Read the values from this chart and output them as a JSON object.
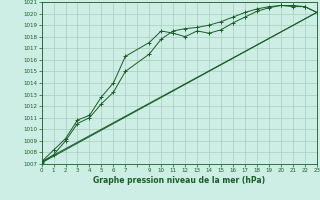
{
  "background_color": "#cdeee4",
  "grid_color": "#a8ccbe",
  "line_color": "#1a5c28",
  "title": "Graphe pression niveau de la mer (hPa)",
  "xlim": [
    0,
    23
  ],
  "ylim": [
    1007,
    1021
  ],
  "xtick_labels": [
    "0",
    "1",
    "2",
    "3",
    "4",
    "5",
    "6",
    "7",
    "",
    "9",
    "10",
    "11",
    "12",
    "13",
    "14",
    "15",
    "16",
    "17",
    "18",
    "19",
    "20",
    "21",
    "22",
    "23"
  ],
  "xtick_vals": [
    0,
    1,
    2,
    3,
    4,
    5,
    6,
    7,
    8,
    9,
    10,
    11,
    12,
    13,
    14,
    15,
    16,
    17,
    18,
    19,
    20,
    21,
    22,
    23
  ],
  "ytick_vals": [
    1007,
    1008,
    1009,
    1010,
    1011,
    1012,
    1013,
    1014,
    1015,
    1016,
    1017,
    1018,
    1019,
    1020,
    1021
  ],
  "line1_x": [
    0,
    1,
    2,
    3,
    4,
    5,
    6,
    7,
    9,
    10,
    11,
    12,
    13,
    14,
    15,
    16,
    17,
    18,
    19,
    20,
    21,
    22,
    23
  ],
  "line1_y": [
    1007.2,
    1008.2,
    1009.2,
    1010.8,
    1011.2,
    1012.8,
    1014.0,
    1016.3,
    1017.5,
    1018.5,
    1018.3,
    1018.0,
    1018.5,
    1018.3,
    1018.6,
    1019.2,
    1019.7,
    1020.2,
    1020.5,
    1020.7,
    1020.6,
    1020.6,
    1020.1
  ],
  "line2_x": [
    0,
    1,
    2,
    3,
    4,
    5,
    6,
    7,
    9,
    10,
    11,
    12,
    13,
    14,
    15,
    16,
    17,
    18,
    19,
    20,
    21,
    22,
    23
  ],
  "line2_y": [
    1007.1,
    1007.8,
    1009.0,
    1010.5,
    1011.0,
    1012.2,
    1013.2,
    1015.0,
    1016.5,
    1017.8,
    1018.5,
    1018.7,
    1018.8,
    1019.0,
    1019.3,
    1019.7,
    1020.1,
    1020.4,
    1020.6,
    1020.7,
    1020.7,
    1020.6,
    1020.1
  ],
  "line3_x": [
    0,
    23
  ],
  "line3_y": [
    1007.2,
    1020.1
  ],
  "line4_x": [
    0,
    23
  ],
  "line4_y": [
    1007.1,
    1020.1
  ]
}
